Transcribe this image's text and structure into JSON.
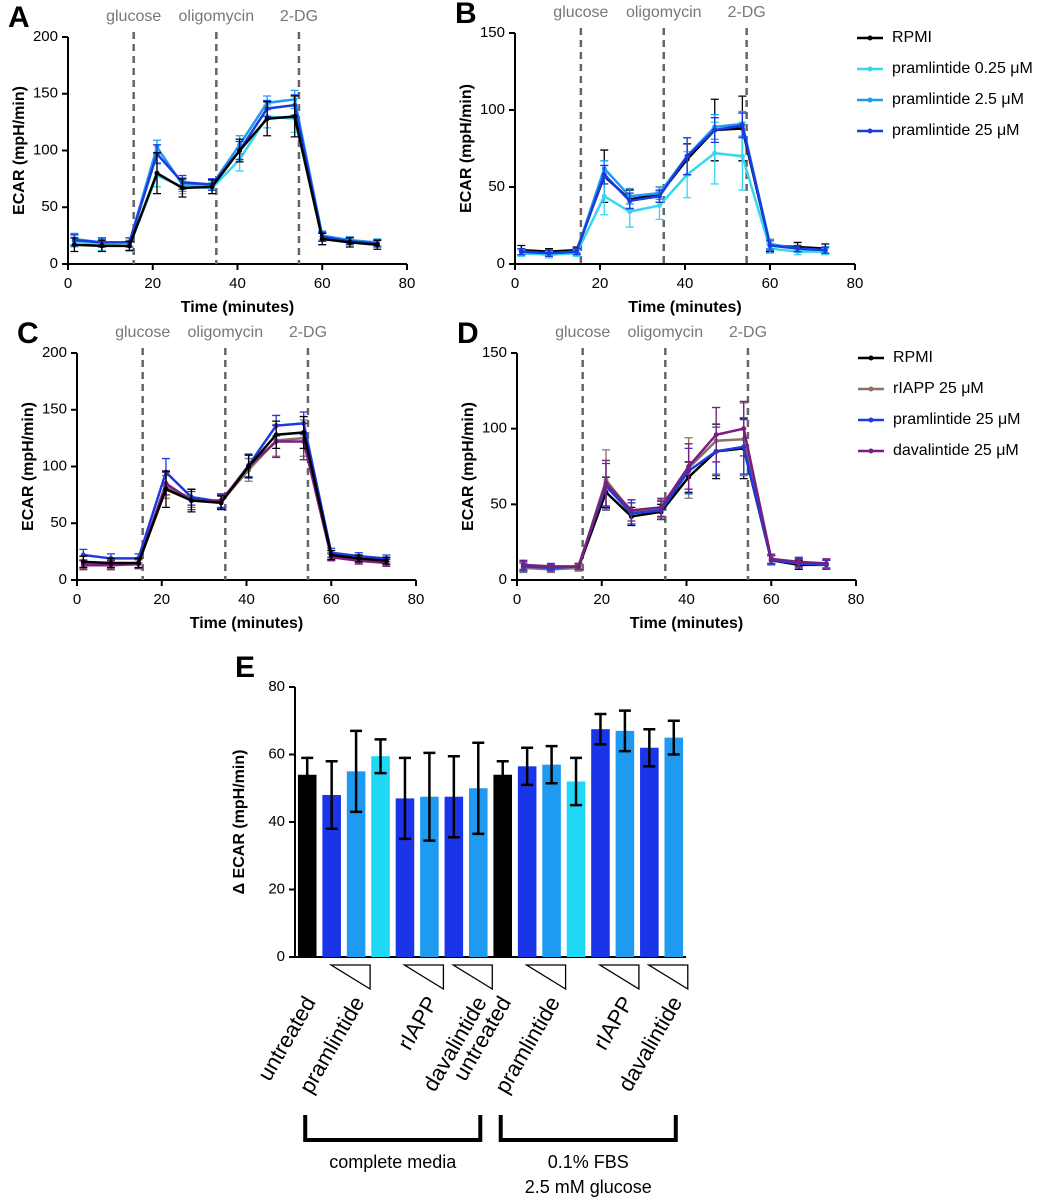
{
  "chart_data": [
    {
      "type": "line",
      "panel": "A",
      "xlabel": "Time (minutes)",
      "ylabel": "ECAR (mpH/min)",
      "xlim": [
        0,
        80
      ],
      "xticks": [
        0,
        20,
        40,
        60,
        80
      ],
      "ylim": [
        0,
        200
      ],
      "yticks": [
        0,
        50,
        100,
        150,
        200
      ],
      "annotations": [
        {
          "label": "glucose",
          "x": 15.5
        },
        {
          "label": "oligomycin",
          "x": 35
        },
        {
          "label": "2-DG",
          "x": 54.5
        }
      ],
      "x": [
        1.5,
        8,
        14.5,
        21,
        27,
        34,
        40.5,
        47,
        53.5,
        60,
        66.5,
        73
      ],
      "series": [
        {
          "color": "#36d6ef",
          "values": [
            20,
            17,
            16,
            78,
            68,
            67,
            92,
            130,
            128,
            24,
            20,
            18
          ],
          "errors": [
            5,
            5,
            5,
            10,
            6,
            5,
            10,
            10,
            12,
            4,
            3,
            3
          ]
        },
        {
          "color": "#1e9bf0",
          "values": [
            22,
            19,
            19,
            103,
            70,
            70,
            105,
            142,
            145,
            25,
            21,
            19
          ],
          "errors": [
            5,
            4,
            4,
            6,
            6,
            5,
            8,
            6,
            8,
            4,
            3,
            3
          ]
        },
        {
          "color": "#1a3be0",
          "values": [
            21,
            19,
            19,
            97,
            72,
            70,
            100,
            137,
            140,
            24,
            20,
            18
          ],
          "errors": [
            5,
            4,
            4,
            8,
            6,
            5,
            8,
            7,
            9,
            4,
            3,
            3
          ]
        },
        {
          "color": "#000000",
          "values": [
            17,
            16,
            16,
            80,
            67,
            68,
            100,
            128,
            130,
            22,
            19,
            17
          ],
          "errors": [
            6,
            5,
            4,
            18,
            8,
            6,
            10,
            15,
            18,
            5,
            4,
            4
          ]
        }
      ]
    },
    {
      "type": "line",
      "panel": "B",
      "xlabel": "Time (minutes)",
      "ylabel": "ECAR (mpH/min)",
      "legend": "right",
      "xlim": [
        0,
        80
      ],
      "xticks": [
        0,
        20,
        40,
        60,
        80
      ],
      "ylim": [
        0,
        150
      ],
      "yticks": [
        0,
        50,
        100,
        150
      ],
      "annotations": [
        {
          "label": "glucose",
          "x": 15.5
        },
        {
          "label": "oligomycin",
          "x": 35
        },
        {
          "label": "2-DG",
          "x": 54.5
        }
      ],
      "x": [
        1.5,
        8,
        14.5,
        21,
        27,
        34,
        40.5,
        47,
        53.5,
        60,
        66.5,
        73
      ],
      "series": [
        {
          "name": "RPMI",
          "color": "#000000",
          "values": [
            9,
            8,
            9,
            57,
            42,
            45,
            68,
            87,
            88,
            12,
            11,
            10
          ],
          "errors": [
            3,
            2,
            2,
            17,
            6,
            5,
            10,
            20,
            21,
            4,
            3,
            3
          ]
        },
        {
          "name": "pramlintide 0.25 μM",
          "color": "#36d6ef",
          "values": [
            7,
            6,
            7,
            44,
            34,
            38,
            58,
            72,
            70,
            10,
            8,
            8
          ],
          "errors": [
            2,
            2,
            2,
            12,
            10,
            9,
            15,
            20,
            22,
            3,
            2,
            2
          ]
        },
        {
          "name": "pramlintide 2.5 μM",
          "color": "#1e9bf0",
          "values": [
            8,
            7,
            8,
            62,
            44,
            46,
            70,
            89,
            91,
            13,
            10,
            9
          ],
          "errors": [
            2,
            2,
            2,
            5,
            5,
            4,
            12,
            8,
            8,
            3,
            2,
            2
          ]
        },
        {
          "name": "pramlintide 25 μM",
          "color": "#1a3be0",
          "values": [
            8,
            7,
            8,
            58,
            41,
            44,
            70,
            87,
            90,
            12,
            10,
            9
          ],
          "errors": [
            2,
            2,
            2,
            6,
            5,
            4,
            12,
            8,
            8,
            3,
            2,
            2
          ]
        }
      ]
    },
    {
      "type": "line",
      "panel": "C",
      "xlabel": "Time (minutes)",
      "ylabel": "ECAR (mpH/min)",
      "xlim": [
        0,
        80
      ],
      "xticks": [
        0,
        20,
        40,
        60,
        80
      ],
      "ylim": [
        0,
        200
      ],
      "yticks": [
        0,
        50,
        100,
        150,
        200
      ],
      "annotations": [
        {
          "label": "glucose",
          "x": 15.5
        },
        {
          "label": "oligomycin",
          "x": 35
        },
        {
          "label": "2-DG",
          "x": 54.5
        }
      ],
      "x": [
        1.5,
        8,
        14.5,
        21,
        27,
        34,
        40.5,
        47,
        53.5,
        60,
        66.5,
        73
      ],
      "series": [
        {
          "color": "#8c7064",
          "values": [
            14,
            14,
            14,
            82,
            72,
            69,
            97,
            123,
            125,
            21,
            18,
            16
          ],
          "errors": [
            4,
            4,
            4,
            10,
            8,
            6,
            10,
            14,
            16,
            3,
            3,
            3
          ]
        },
        {
          "color": "#1a3be0",
          "values": [
            22,
            19,
            19,
            95,
            73,
            69,
            101,
            136,
            138,
            24,
            21,
            19
          ],
          "errors": [
            5,
            4,
            4,
            12,
            7,
            6,
            10,
            9,
            10,
            4,
            3,
            3
          ]
        },
        {
          "color": "#7b1f7e",
          "values": [
            13,
            13,
            14,
            85,
            70,
            70,
            100,
            122,
            122,
            20,
            17,
            15
          ],
          "errors": [
            4,
            4,
            4,
            10,
            8,
            6,
            10,
            14,
            16,
            3,
            3,
            3
          ]
        },
        {
          "color": "#000000",
          "values": [
            16,
            15,
            15,
            80,
            70,
            68,
            100,
            128,
            130,
            22,
            19,
            17
          ],
          "errors": [
            5,
            4,
            4,
            16,
            10,
            6,
            10,
            12,
            14,
            4,
            3,
            3
          ]
        }
      ]
    },
    {
      "type": "line",
      "panel": "D",
      "xlabel": "Time (minutes)",
      "ylabel": "ECAR (mpH/min)",
      "legend": "right",
      "xlim": [
        0,
        80
      ],
      "xticks": [
        0,
        20,
        40,
        60,
        80
      ],
      "ylim": [
        0,
        150
      ],
      "yticks": [
        0,
        50,
        100,
        150
      ],
      "annotations": [
        {
          "label": "glucose",
          "x": 15.5
        },
        {
          "label": "oligomycin",
          "x": 35
        },
        {
          "label": "2-DG",
          "x": 54.5
        }
      ],
      "x": [
        1.5,
        8,
        14.5,
        21,
        27,
        34,
        40.5,
        47,
        53.5,
        60,
        66.5,
        73
      ],
      "series": [
        {
          "name": "RPMI",
          "color": "#000000",
          "values": [
            9,
            8,
            8,
            58,
            42,
            45,
            68,
            85,
            87,
            13,
            10,
            10
          ],
          "errors": [
            3,
            2,
            2,
            10,
            6,
            5,
            10,
            18,
            20,
            3,
            3,
            3
          ]
        },
        {
          "name": "rIAPP 25 μM",
          "color": "#8c7064",
          "values": [
            8,
            7,
            8,
            66,
            45,
            47,
            74,
            92,
            93,
            14,
            11,
            10
          ],
          "errors": [
            3,
            2,
            2,
            20,
            8,
            6,
            20,
            22,
            24,
            3,
            3,
            3
          ]
        },
        {
          "name": "pramlintide 25 μM",
          "color": "#1a3be0",
          "values": [
            9,
            8,
            9,
            62,
            44,
            46,
            72,
            85,
            88,
            13,
            11,
            10
          ],
          "errors": [
            3,
            2,
            2,
            15,
            7,
            6,
            15,
            16,
            18,
            3,
            3,
            3
          ]
        },
        {
          "name": "davalintide 25 μM",
          "color": "#7b1f7e",
          "values": [
            10,
            9,
            9,
            64,
            46,
            48,
            75,
            96,
            100,
            14,
            12,
            11
          ],
          "errors": [
            3,
            2,
            2,
            15,
            7,
            6,
            15,
            18,
            18,
            3,
            3,
            3
          ]
        }
      ]
    },
    {
      "type": "bar",
      "panel": "E",
      "ylabel": "Δ ECAR (mpH/min)",
      "ylim": [
        0,
        80
      ],
      "yticks": [
        0,
        20,
        40,
        60,
        80
      ],
      "categories": [
        "untreated",
        null,
        "pramlintide",
        null,
        null,
        "rIAPP",
        null,
        "davalintide",
        "untreated",
        null,
        "pramlintide",
        null,
        null,
        "rIAPP",
        null,
        "davalintide"
      ],
      "values": [
        54,
        48,
        55,
        59.5,
        47,
        47.5,
        47.5,
        50,
        54,
        56.5,
        57,
        52,
        67.5,
        67,
        62,
        65
      ],
      "errors": [
        5,
        10,
        12,
        5,
        12,
        13,
        12,
        13.5,
        4,
        5.5,
        5.5,
        7,
        4.5,
        6,
        5.5,
        5
      ],
      "colors": [
        "#000000",
        "#1a35e8",
        "#1e9bf0",
        "#1ed8f5",
        "#1a35e8",
        "#1e9bf0",
        "#1a35e8",
        "#1e9bf0",
        "#000000",
        "#1a35e8",
        "#1e9bf0",
        "#1ed8f5",
        "#1a35e8",
        "#1e9bf0",
        "#1a35e8",
        "#1e9bf0"
      ],
      "groups": [
        {
          "label": [
            "complete media"
          ]
        },
        {
          "label": [
            "0.1% FBS",
            "2.5 mM glucose"
          ]
        }
      ]
    }
  ]
}
